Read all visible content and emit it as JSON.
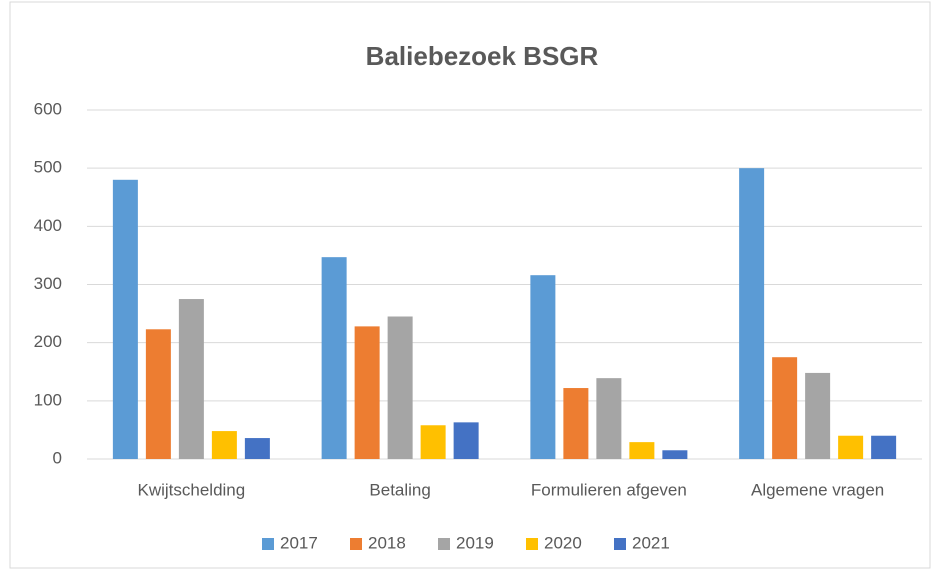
{
  "chart_data": {
    "type": "bar",
    "title": "Baliebezoek BSGR",
    "categories": [
      "Kwijtschelding",
      "Betaling",
      "Formulieren afgeven",
      "Algemene vragen"
    ],
    "series": [
      {
        "name": "2017",
        "color": "#5b9bd5",
        "values": [
          480,
          347,
          316,
          500
        ]
      },
      {
        "name": "2018",
        "color": "#ed7d31",
        "values": [
          223,
          228,
          122,
          175
        ]
      },
      {
        "name": "2019",
        "color": "#a5a5a5",
        "values": [
          275,
          245,
          139,
          148
        ]
      },
      {
        "name": "2020",
        "color": "#ffc000",
        "values": [
          48,
          58,
          29,
          40
        ]
      },
      {
        "name": "2021",
        "color": "#4472c4",
        "values": [
          36,
          63,
          15,
          40
        ]
      }
    ],
    "ylim": [
      0,
      600
    ],
    "yticks": [
      0,
      100,
      200,
      300,
      400,
      500,
      600
    ],
    "grid": true,
    "legend": "bottom"
  }
}
